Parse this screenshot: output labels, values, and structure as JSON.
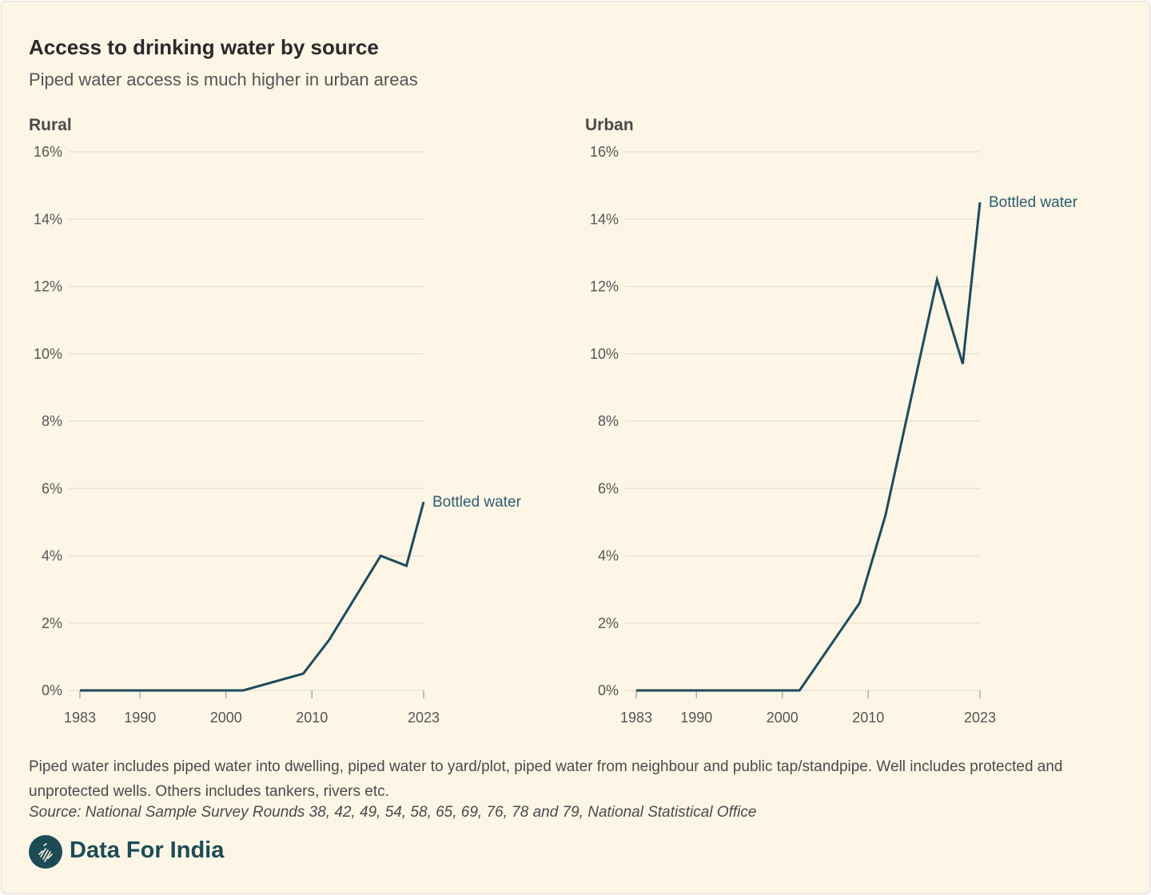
{
  "header": {
    "title": "Access to drinking water by source",
    "subtitle": "Piped water access is much higher in urban areas"
  },
  "chart_data": [
    {
      "type": "line",
      "title": "Rural",
      "x": [
        1983,
        1988,
        1993,
        1998,
        2002,
        2009,
        2012,
        2018,
        2021,
        2023
      ],
      "series": [
        {
          "name": "Bottled water",
          "values": [
            0,
            0,
            0,
            0,
            0,
            0.5,
            1.5,
            4.0,
            3.7,
            5.6
          ]
        }
      ],
      "xticks": [
        "1983",
        "1990",
        "2000",
        "2010",
        "2023"
      ],
      "xtick_values": [
        1983,
        1990,
        2000,
        2010,
        2023
      ],
      "yticks": [
        "0%",
        "2%",
        "4%",
        "6%",
        "8%",
        "10%",
        "12%",
        "14%",
        "16%"
      ],
      "ytick_values": [
        0,
        2,
        4,
        6,
        8,
        10,
        12,
        14,
        16
      ],
      "xlim": [
        1983,
        2023
      ],
      "ylim": [
        0,
        16
      ],
      "grid": true,
      "series_label": "Bottled water",
      "line_color": "#1d4b5c"
    },
    {
      "type": "line",
      "title": "Urban",
      "x": [
        1983,
        1988,
        1993,
        1998,
        2002,
        2009,
        2012,
        2018,
        2021,
        2023
      ],
      "series": [
        {
          "name": "Bottled water",
          "values": [
            0,
            0,
            0,
            0,
            0,
            2.6,
            5.2,
            12.2,
            9.7,
            14.5
          ]
        }
      ],
      "xticks": [
        "1983",
        "1990",
        "2000",
        "2010",
        "2023"
      ],
      "xtick_values": [
        1983,
        1990,
        2000,
        2010,
        2023
      ],
      "yticks": [
        "0%",
        "2%",
        "4%",
        "6%",
        "8%",
        "10%",
        "12%",
        "14%",
        "16%"
      ],
      "ytick_values": [
        0,
        2,
        4,
        6,
        8,
        10,
        12,
        14,
        16
      ],
      "xlim": [
        1983,
        2023
      ],
      "ylim": [
        0,
        16
      ],
      "grid": true,
      "series_label": "Bottled water",
      "line_color": "#1d4b5c"
    }
  ],
  "footer": {
    "note": "Piped water includes piped water into dwelling, piped water to yard/plot, piped water from neighbour and public tap/standpipe. Well includes protected and unprotected wells. Others includes tankers, rivers etc.",
    "source": "Source: National Sample Survey Rounds 38, 42, 49, 54, 58, 65, 69, 76, 78 and 79, National Statistical Office",
    "brand": "Data For India",
    "logo_icon": "india-map-logo-icon"
  },
  "colors": {
    "background": "#fdf5e6",
    "line": "#1d4b5c",
    "grid": "#e6e0d4",
    "brand": "#1d4b55"
  }
}
